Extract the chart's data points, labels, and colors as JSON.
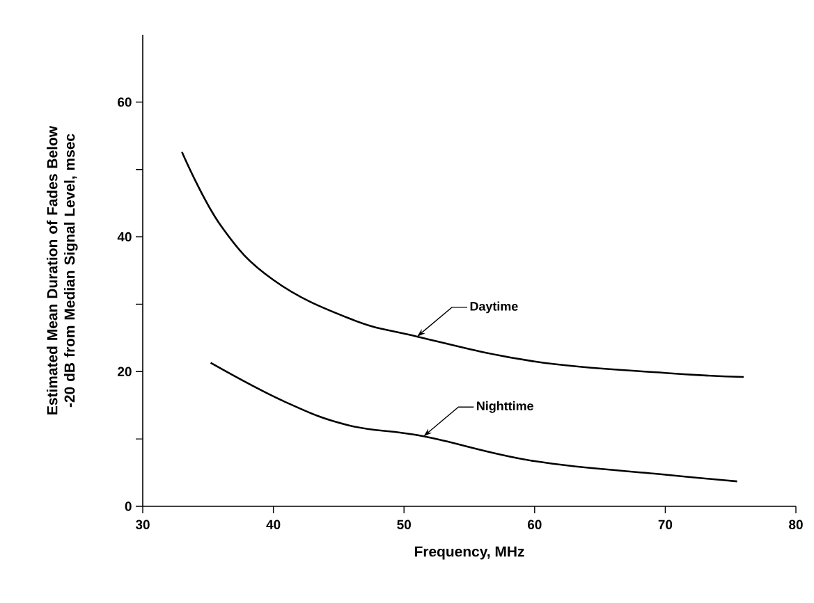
{
  "chart_data": {
    "type": "line",
    "xlabel": "Frequency, MHz",
    "ylabel": "Estimated Mean Duration of Fades Below\n-20 dB from Median Signal Level, msec",
    "xlim": [
      30,
      80
    ],
    "ylim": [
      0,
      70
    ],
    "xticks": [
      30,
      40,
      50,
      60,
      70,
      80
    ],
    "yticks": [
      0,
      {
        "value": 10,
        "label": null
      },
      20,
      {
        "value": 30,
        "label": null
      },
      40,
      {
        "value": 50,
        "label": null
      },
      60
    ],
    "grid": false,
    "legend": false,
    "marker": "none",
    "line_style": "solid",
    "series": [
      {
        "color": "#000000",
        "x": [
          33,
          36,
          40,
          45.8,
          51,
          60,
          70,
          76
        ],
        "values": [
          52.6,
          41.6,
          33.6,
          27.9,
          25.2,
          21.5,
          19.8,
          19.2
        ]
      },
      {
        "color": "#000000",
        "x": [
          35.2,
          40.9,
          45.8,
          51.5,
          60,
          70,
          75.5
        ],
        "values": [
          21.3,
          15.5,
          12.0,
          10.4,
          6.7,
          4.7,
          3.7
        ]
      }
    ],
    "annotations": [
      {
        "text": "Daytime",
        "x": 51,
        "y": 25.2
      },
      {
        "text": "Nighttime",
        "x": 51.5,
        "y": 10.4
      }
    ]
  }
}
